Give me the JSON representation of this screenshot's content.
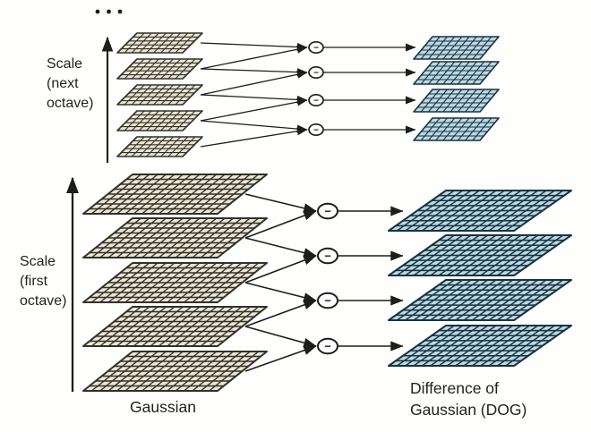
{
  "figure": {
    "continuation_dots": "• • •",
    "axis_next_octave_label": [
      "Scale",
      "(next",
      "octave)"
    ],
    "axis_first_octave_label": [
      "Scale",
      "(first",
      "octave)"
    ],
    "gaussian_caption": "Gaussian",
    "dog_caption": [
      "Difference of",
      "Gaussian (DOG)"
    ],
    "minus_operator": "−",
    "colors": {
      "background": "#fefefd",
      "gaussian_fill": "#eae6d3",
      "gaussian_line": "#32302a",
      "dog_fill": "#bdd8e3",
      "dog_line": "#17333f",
      "ink": "#1d1d1b",
      "text": "#231f20"
    }
  }
}
